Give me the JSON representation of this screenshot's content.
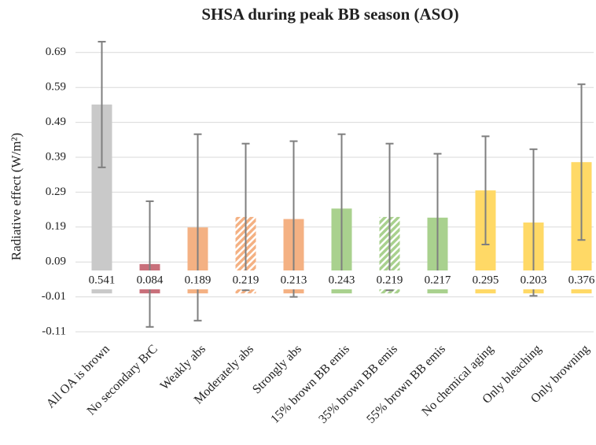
{
  "chart_data": {
    "type": "bar",
    "title": "SHSA during peak BB season (ASO)",
    "ylabel": "Radiative effect (W/m²)",
    "categories": [
      "All OA is brown",
      "No secondary BrC",
      "Weakly abs",
      "Moderately abs",
      "Strongly abs",
      "15% brown BB emis",
      "35% brown BB emis",
      "55% brown BB emis",
      "No chemical aging",
      "Only bleaching",
      "Only browning"
    ],
    "values": [
      0.541,
      0.084,
      0.189,
      0.219,
      0.213,
      0.243,
      0.219,
      0.217,
      0.295,
      0.203,
      0.376
    ],
    "errors": [
      0.18,
      0.18,
      0.267,
      0.21,
      0.223,
      0.213,
      0.21,
      0.183,
      0.155,
      0.21,
      0.223
    ],
    "colors": [
      "#c9c9c9",
      "#c9707b",
      "#f4b183",
      "#f4b183",
      "#f4b183",
      "#a9d18e",
      "#a9d18e",
      "#a9d18e",
      "#ffd966",
      "#ffd966",
      "#ffd966"
    ],
    "hatched": [
      false,
      false,
      false,
      true,
      false,
      false,
      true,
      false,
      false,
      false,
      false
    ],
    "error_color": "#7f7f7f",
    "ylim": [
      -0.11,
      0.75
    ],
    "yticks": [
      -0.11,
      -0.01,
      0.09,
      0.19,
      0.29,
      0.39,
      0.49,
      0.59,
      0.69
    ],
    "grid": true
  }
}
